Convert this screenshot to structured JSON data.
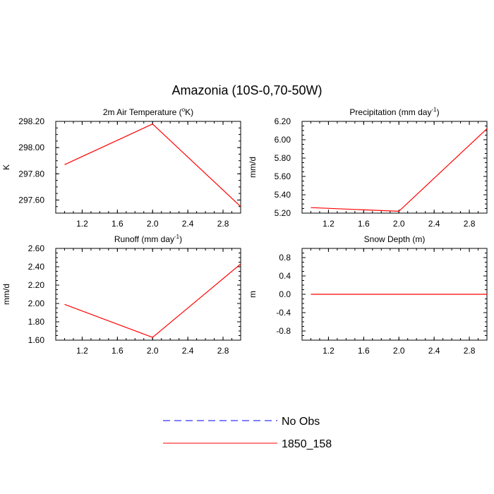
{
  "figure": {
    "title": "Amazonia (10S-0,70-50W)",
    "legend": {
      "placement": "bottom-center",
      "entries": [
        {
          "label": "No Obs",
          "color": "#0000ff",
          "dash": "dashed"
        },
        {
          "label": "1850_158",
          "color": "#ff0000",
          "dash": "solid"
        }
      ]
    }
  },
  "chart_data": [
    {
      "type": "line",
      "title": "2m Air Temperature (",
      "title_sup": "o",
      "title_tail": "K)",
      "ylabel": "K",
      "xlim": [
        0.9,
        3.0
      ],
      "ylim": [
        297.5,
        298.2
      ],
      "xticks": [
        1.2,
        1.6,
        2.0,
        2.4,
        2.8
      ],
      "xtick_labels": [
        "1.2",
        "1.6",
        "2.0",
        "2.4",
        "2.8"
      ],
      "yticks": [
        297.6,
        297.8,
        298.0,
        298.2
      ],
      "ytick_labels": [
        "297.60",
        "297.80",
        "298.00",
        "298.20"
      ],
      "series": [
        {
          "name": "1850_158",
          "color": "#ff0000",
          "x": [
            1,
            2,
            3
          ],
          "y": [
            297.87,
            298.18,
            297.55
          ]
        }
      ]
    },
    {
      "type": "line",
      "title": "Precipitation (mm day",
      "title_sup": "-1",
      "title_tail": ")",
      "ylabel": "mm/d",
      "xlim": [
        0.9,
        3.0
      ],
      "ylim": [
        5.2,
        6.2
      ],
      "xticks": [
        1.2,
        1.6,
        2.0,
        2.4,
        2.8
      ],
      "xtick_labels": [
        "1.2",
        "1.6",
        "2.0",
        "2.4",
        "2.8"
      ],
      "yticks": [
        5.2,
        5.4,
        5.6,
        5.8,
        6.0,
        6.2
      ],
      "ytick_labels": [
        "5.20",
        "5.40",
        "5.60",
        "5.80",
        "6.00",
        "6.20"
      ],
      "series": [
        {
          "name": "1850_158",
          "color": "#ff0000",
          "x": [
            1,
            2,
            3
          ],
          "y": [
            5.26,
            5.22,
            6.12
          ]
        }
      ]
    },
    {
      "type": "line",
      "title": "Runoff (mm day",
      "title_sup": "-1",
      "title_tail": ")",
      "ylabel": "mm/d",
      "xlim": [
        0.9,
        3.0
      ],
      "ylim": [
        1.6,
        2.6
      ],
      "xticks": [
        1.2,
        1.6,
        2.0,
        2.4,
        2.8
      ],
      "xtick_labels": [
        "1.2",
        "1.6",
        "2.0",
        "2.4",
        "2.8"
      ],
      "yticks": [
        1.6,
        1.8,
        2.0,
        2.2,
        2.4,
        2.6
      ],
      "ytick_labels": [
        "1.60",
        "1.80",
        "2.00",
        "2.20",
        "2.40",
        "2.60"
      ],
      "series": [
        {
          "name": "1850_158",
          "color": "#ff0000",
          "x": [
            1,
            2,
            3
          ],
          "y": [
            1.99,
            1.63,
            2.43
          ]
        }
      ]
    },
    {
      "type": "line",
      "title": "Snow Depth (m)",
      "title_sup": "",
      "title_tail": "",
      "ylabel": "m",
      "xlim": [
        0.9,
        3.0
      ],
      "ylim": [
        -1.0,
        1.0
      ],
      "xticks": [
        1.2,
        1.6,
        2.0,
        2.4,
        2.8
      ],
      "xtick_labels": [
        "1.2",
        "1.6",
        "2.0",
        "2.4",
        "2.8"
      ],
      "yticks": [
        -0.8,
        -0.4,
        0.0,
        0.4,
        0.8
      ],
      "ytick_labels": [
        "-0.8",
        "-0.4",
        "0.0",
        "0.4",
        "0.8"
      ],
      "series": [
        {
          "name": "1850_158",
          "color": "#ff0000",
          "x": [
            1,
            2,
            3
          ],
          "y": [
            0,
            0,
            0
          ]
        }
      ]
    }
  ]
}
